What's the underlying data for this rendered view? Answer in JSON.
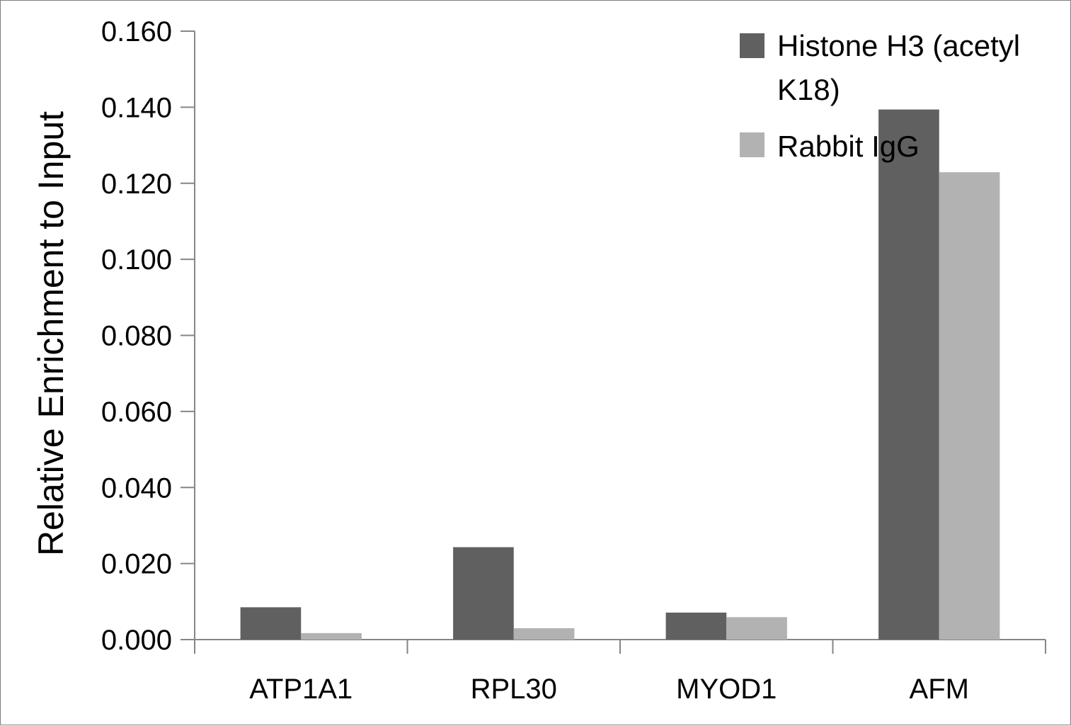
{
  "chart_data": {
    "type": "bar",
    "title": "",
    "xlabel": "",
    "ylabel": "Relative Enrichment to Input",
    "categories": [
      "ATP1A1",
      "RPL30",
      "MYOD1",
      "AFM"
    ],
    "series": [
      {
        "name": "Histone H3 (acetyl K18)",
        "color": "#606060",
        "values": [
          0.0085,
          0.0243,
          0.0071,
          0.1394
        ]
      },
      {
        "name": "Rabbit IgG",
        "color": "#b2b2b2",
        "values": [
          0.0017,
          0.003,
          0.0059,
          0.1229
        ]
      }
    ],
    "ylim": [
      0,
      0.16
    ],
    "yticks": [
      "0.000",
      "0.020",
      "0.040",
      "0.060",
      "0.080",
      "0.100",
      "0.120",
      "0.140",
      "0.160"
    ],
    "grid": false,
    "legend_position": "top-right"
  }
}
